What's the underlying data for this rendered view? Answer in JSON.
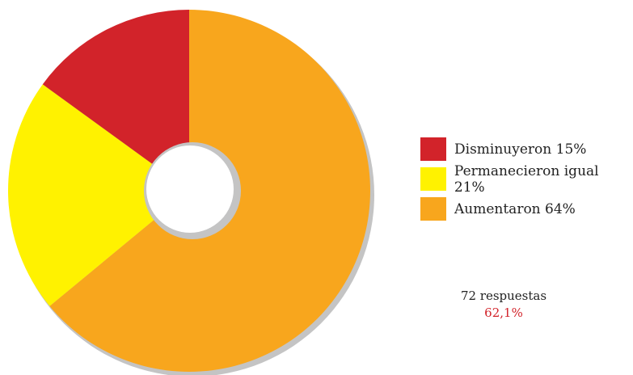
{
  "colors": {
    "decreased": "#d2232a",
    "same": "#fff200",
    "increased": "#f8a61d",
    "shadow": "#c4c4c4",
    "percent_text": "#d2232a"
  },
  "chart_data": {
    "type": "pie",
    "style": "donut",
    "title": "",
    "slices": [
      {
        "label": "Disminuyeron",
        "value": 15,
        "color": "#d2232a",
        "legend": "Disminuyeron 15%"
      },
      {
        "label": "Permanecieron igual",
        "value": 21,
        "color": "#fff200",
        "legend": "Permanecieron igual 21%"
      },
      {
        "label": "Aumentaron",
        "value": 64,
        "color": "#f8a61d",
        "legend": "Aumentaron 64%"
      }
    ],
    "legend_position": "right"
  },
  "legend": [
    {
      "label": "Disminuyeron 15%"
    },
    {
      "label": "Permanecieron igual 21%"
    },
    {
      "label": "Aumentaron 64%"
    }
  ],
  "footer": {
    "responses": "72 respuestas",
    "percent": "62,1%"
  }
}
